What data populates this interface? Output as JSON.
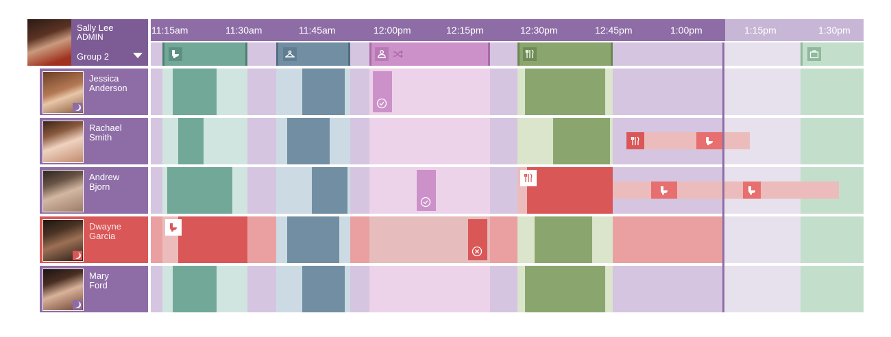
{
  "admin": {
    "name": "Sally Lee",
    "role": "ADMIN",
    "group": "Group 2"
  },
  "timeline": {
    "labels": [
      "11:15am",
      "11:30am",
      "11:45am",
      "12:00pm",
      "12:15pm",
      "12:30pm",
      "12:45pm",
      "1:00pm",
      "1:15pm",
      "1:30pm"
    ]
  },
  "agents": [
    {
      "first": "Jessica",
      "last": "Anderson",
      "status": "normal"
    },
    {
      "first": "Rachael",
      "last": "Smith",
      "status": "normal"
    },
    {
      "first": "Andrew",
      "last": "Bjorn",
      "status": "normal"
    },
    {
      "first": "Dwayne",
      "last": "Garcia",
      "status": "alert"
    },
    {
      "first": "Mary",
      "last": "Ford",
      "status": "normal"
    }
  ],
  "colors": {
    "purple_dark": "#8e6da6",
    "teal": "#72a898",
    "teal_light": "#d1e5e0",
    "slate": "#718ea3",
    "slate_light": "#ccdbe3",
    "pink": "#cc91c9",
    "pink_light": "#edd3ea",
    "green": "#8aa66e",
    "green_light": "#dae5cc",
    "lavender": "#d5c5e0",
    "red": "#d95757",
    "red_light": "#eaa0a0"
  }
}
